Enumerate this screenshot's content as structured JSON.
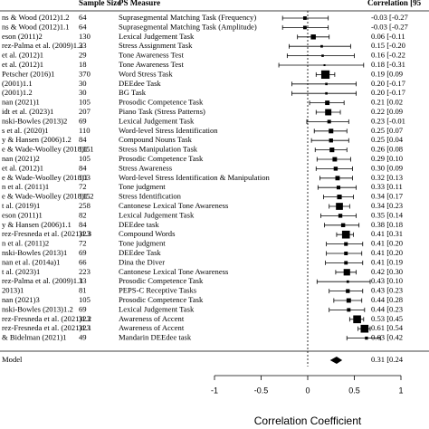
{
  "chart_data": {
    "type": "forest",
    "columns": [
      "Sample Size",
      "PS Measure",
      "Correlation [95"
    ],
    "studies": [
      "ns & Wood (2012)1.2",
      "ns & Wood (2012)1.1",
      "eson (2011)2",
      "rez-Palma et al. (2009)1.2",
      "et al. (2012)1",
      "et al. (2012)1",
      "Petscher (2016)1",
      "(2001)1.1",
      "(2001)1.2",
      "nan (2021)1",
      "idt et al. (2023)1",
      "nski-Bowles (2013)2",
      "s et al. (2020)1",
      "y & Hansen (2006)1.2",
      "e & Wade-Woolley (2018)1.1",
      "nan (2021)2",
      "et al. (2012)1",
      "e & Wade-Woolley (2018)1",
      "n et al. (2011)1",
      "e & Wade-Woolley (2018)1.2",
      "t al. (2019)1",
      "eson (2011)1",
      "y & Hansen (2006)1.1",
      "rez-Fresneda et al. (2021)1.3",
      "n et al. (2011)2",
      "nski-Bowles (2013)1",
      "nan et al. (2014a)1",
      "t al. (2023)1",
      "rez-Palma et al. (2009)1.1",
      "2013)1",
      "nan (2021)3",
      "nski-Bowles (2013)1.2",
      "rez-Fresneda et al. (2021)1.2",
      "rez-Fresneda et al. (2021)1.1",
      "& Bidelman (2021)1"
    ],
    "sample_sizes": [
      64,
      64,
      130,
      33,
      29,
      18,
      370,
      30,
      30,
      105,
      207,
      69,
      110,
      84,
      115,
      105,
      84,
      103,
      72,
      115,
      258,
      82,
      84,
      323,
      72,
      69,
      66,
      223,
      33,
      81,
      105,
      69,
      323,
      323,
      49
    ],
    "measures": [
      "Suprasegmental Matching Task (Frequency)",
      "Suprasegmental Matching Task (Amplitude)",
      "Lexical Judgement Task",
      "Stress Assignment Task",
      "Tone Awareness Test",
      "Tone Awareness Test",
      "Word Stress Task",
      "DEEdee Task",
      "BG Task",
      "Prosodic Competence Task",
      "Piano Task (Stress Patterns)",
      "Lexical Judgement Task",
      "Word-level Stress Identification",
      "Compound Nouns Task",
      "Stress Manipulation Task",
      "Prosodic Competence Task",
      "Stress Awareness",
      "Word-level Stress Identification & Manipulation",
      "Tone judgment",
      "Stress Identification",
      "Cantonese Lexical Tone Awareness",
      "Lexical Judgement Task",
      "DEEdee task",
      "Compound Words",
      "Tone judgment",
      "DEEdee Task",
      "Dina the Diver",
      "Cantonese Lexical Tone Awareness",
      "Prosodic Competence Task",
      "PEPS-C Receptive Tasks",
      "Prosodic Competence Task",
      "Lexical Judgement Task",
      "Awareness of Accent",
      "Awareness of Accent",
      "Mandarin DEEdee task"
    ],
    "values": [
      -0.03,
      -0.03,
      0.06,
      0.15,
      0.16,
      0.18,
      0.19,
      0.2,
      0.2,
      0.21,
      0.22,
      0.23,
      0.25,
      0.25,
      0.26,
      0.29,
      0.3,
      0.32,
      0.33,
      0.34,
      0.34,
      0.35,
      0.38,
      0.41,
      0.41,
      0.41,
      0.41,
      0.42,
      0.43,
      0.43,
      0.44,
      0.44,
      0.53,
      0.61,
      0.63
    ],
    "ci_lower": [
      -0.27,
      -0.27,
      -0.11,
      -0.2,
      -0.22,
      -0.31,
      0.09,
      -0.17,
      -0.17,
      0.02,
      0.09,
      -0.01,
      0.07,
      0.04,
      0.08,
      0.1,
      0.09,
      0.13,
      0.11,
      0.17,
      0.23,
      0.14,
      0.18,
      0.31,
      0.2,
      0.2,
      0.19,
      0.3,
      0.1,
      0.23,
      0.28,
      0.23,
      0.45,
      0.54,
      0.42
    ],
    "ci_upper": [
      0.22,
      0.22,
      0.23,
      0.46,
      0.5,
      0.6,
      0.29,
      0.52,
      0.52,
      0.39,
      0.35,
      0.44,
      0.42,
      0.44,
      0.42,
      0.46,
      0.48,
      0.48,
      0.52,
      0.49,
      0.45,
      0.52,
      0.55,
      0.49,
      0.59,
      0.58,
      0.59,
      0.52,
      0.67,
      0.59,
      0.58,
      0.61,
      0.6,
      0.67,
      0.78
    ],
    "value_labels": [
      "-0.03 [-0.27",
      "-0.03 [-0.27",
      "0.06 [-0.11",
      "0.15 [-0.20",
      "0.16 [-0.22",
      "0.18 [-0.31",
      "0.19 [0.09",
      "0.20 [-0.17",
      "0.20 [-0.17",
      "0.21 [0.02",
      "0.22 [0.09",
      "0.23 [-0.01",
      "0.25 [0.07",
      "0.25 [0.04",
      "0.26 [0.08",
      "0.29 [0.10",
      "0.30 [0.09",
      "0.32 [0.13",
      "0.33 [0.11",
      "0.34 [0.17",
      "0.34 [0.23",
      "0.35 [0.14",
      "0.38 [0.18",
      "0.41 [0.31",
      "0.41 [0.20",
      "0.41 [0.20",
      "0.41 [0.19",
      "0.42 [0.30",
      "0.43 [0.10",
      "0.43 [0.23",
      "0.44 [0.28",
      "0.44 [0.23",
      "0.53 [0.45",
      "0.61 [0.54",
      "0.63 [0.42"
    ],
    "summary": {
      "label": "Model",
      "value": 0.31,
      "ci_lower": 0.24,
      "ci_upper": 0.37,
      "value_label": "0.31 [0.24"
    },
    "xlim": [
      -1,
      1
    ],
    "xticks": [
      -1,
      -0.5,
      0,
      0.5,
      1
    ],
    "reference_line": 0,
    "xlabel": "Correlation Coefficient",
    "color": "#000000"
  }
}
